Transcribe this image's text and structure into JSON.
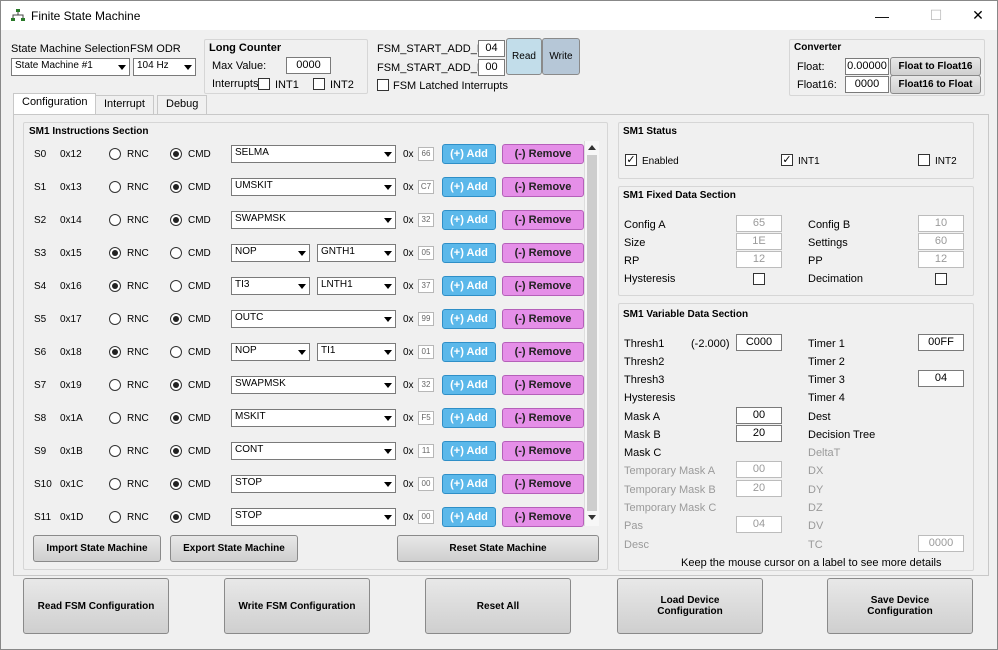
{
  "window": {
    "title": "Finite State Machine",
    "minimize": "—",
    "maximize": "☐",
    "close": "✕"
  },
  "top": {
    "sm_selection_label": "State Machine Selection",
    "sm_selection_value": "State Machine #1",
    "fsm_odr_label": "FSM ODR",
    "fsm_odr_value": "104 Hz"
  },
  "long_counter": {
    "title": "Long Counter",
    "max_label": "Max Value:",
    "max_value": "0000",
    "interrupts_label": "Interrupts",
    "int1": "INT1",
    "int2": "INT2"
  },
  "fsm_start": {
    "h_label": "FSM_START_ADD_H:",
    "h_value": "04",
    "l_label": "FSM_START_ADD_L:",
    "l_value": "00",
    "read": "Read",
    "write": "Write",
    "latched": "FSM Latched Interrupts"
  },
  "converter": {
    "title": "Converter",
    "float_label": "Float:",
    "float_value": "0.00000",
    "f16_label": "Float16:",
    "f16_value": "0000",
    "to_f16": "Float to Float16",
    "to_float": "Float16 to Float"
  },
  "tabs": [
    "Configuration",
    "Interrupt",
    "Debug"
  ],
  "instructions": {
    "title": "SM1 Instructions Section",
    "rnc": "RNC",
    "cmd": "CMD",
    "ox": "0x",
    "add": "(+) Add",
    "remove": "(-) Remove",
    "rows": [
      {
        "state": "S0",
        "addr": "0x12",
        "mode": "CMD",
        "op1": "SELMA",
        "op2": "",
        "hex": "66"
      },
      {
        "state": "S1",
        "addr": "0x13",
        "mode": "CMD",
        "op1": "UMSKIT",
        "op2": "",
        "hex": "C7"
      },
      {
        "state": "S2",
        "addr": "0x14",
        "mode": "CMD",
        "op1": "SWAPMSK",
        "op2": "",
        "hex": "32"
      },
      {
        "state": "S3",
        "addr": "0x15",
        "mode": "RNC",
        "op1": "NOP",
        "op2": "GNTH1",
        "hex": "05"
      },
      {
        "state": "S4",
        "addr": "0x16",
        "mode": "RNC",
        "op1": "TI3",
        "op2": "LNTH1",
        "hex": "37"
      },
      {
        "state": "S5",
        "addr": "0x17",
        "mode": "CMD",
        "op1": "OUTC",
        "op2": "",
        "hex": "99"
      },
      {
        "state": "S6",
        "addr": "0x18",
        "mode": "RNC",
        "op1": "NOP",
        "op2": "TI1",
        "hex": "01"
      },
      {
        "state": "S7",
        "addr": "0x19",
        "mode": "CMD",
        "op1": "SWAPMSK",
        "op2": "",
        "hex": "32"
      },
      {
        "state": "S8",
        "addr": "0x1A",
        "mode": "CMD",
        "op1": "MSKIT",
        "op2": "",
        "hex": "F5"
      },
      {
        "state": "S9",
        "addr": "0x1B",
        "mode": "CMD",
        "op1": "CONT",
        "op2": "",
        "hex": "11"
      },
      {
        "state": "S10",
        "addr": "0x1C",
        "mode": "CMD",
        "op1": "STOP",
        "op2": "",
        "hex": "00"
      },
      {
        "state": "S11",
        "addr": "0x1D",
        "mode": "CMD",
        "op1": "STOP",
        "op2": "",
        "hex": "00"
      }
    ],
    "import": "Import State Machine",
    "export": "Export State Machine",
    "reset": "Reset State Machine"
  },
  "status": {
    "title": "SM1 Status",
    "enabled": "Enabled",
    "int1": "INT1",
    "int2": "INT2"
  },
  "fixed": {
    "title": "SM1 Fixed Data Section",
    "config_a": "Config A",
    "config_a_v": "65",
    "config_b": "Config B",
    "config_b_v": "10",
    "size": "Size",
    "size_v": "1E",
    "settings": "Settings",
    "settings_v": "60",
    "rp": "RP",
    "rp_v": "12",
    "pp": "PP",
    "pp_v": "12",
    "hysteresis": "Hysteresis",
    "decimation": "Decimation"
  },
  "variable": {
    "title": "SM1 Variable Data Section",
    "thresh1": "Thresh1",
    "thresh1_conv": "(-2.000)",
    "thresh1_v": "C000",
    "thresh2": "Thresh2",
    "thresh3": "Thresh3",
    "hysteresis": "Hysteresis",
    "mask_a": "Mask A",
    "mask_a_v": "00",
    "mask_b": "Mask B",
    "mask_b_v": "20",
    "mask_c": "Mask C",
    "tmask_a": "Temporary Mask A",
    "tmask_a_v": "00",
    "tmask_b": "Temporary Mask B",
    "tmask_b_v": "20",
    "tmask_c": "Temporary Mask C",
    "pas": "Pas",
    "pas_v": "04",
    "desc": "Desc",
    "timer1": "Timer 1",
    "timer1_v": "00FF",
    "timer2": "Timer 2",
    "timer3": "Timer 3",
    "timer3_v": "04",
    "timer4": "Timer 4",
    "dest": "Dest",
    "decision_tree": "Decision Tree",
    "deltat": "DeltaT",
    "dx": "DX",
    "dy": "DY",
    "dz": "DZ",
    "dv": "DV",
    "tc": "TC",
    "tc_v": "0000",
    "hint": "Keep the mouse cursor on a label to see more details"
  },
  "bottom": {
    "read": "Read FSM Configuration",
    "write": "Write FSM Configuration",
    "reset": "Reset All",
    "load": "Load Device Configuration",
    "save": "Save Device Configuration"
  }
}
